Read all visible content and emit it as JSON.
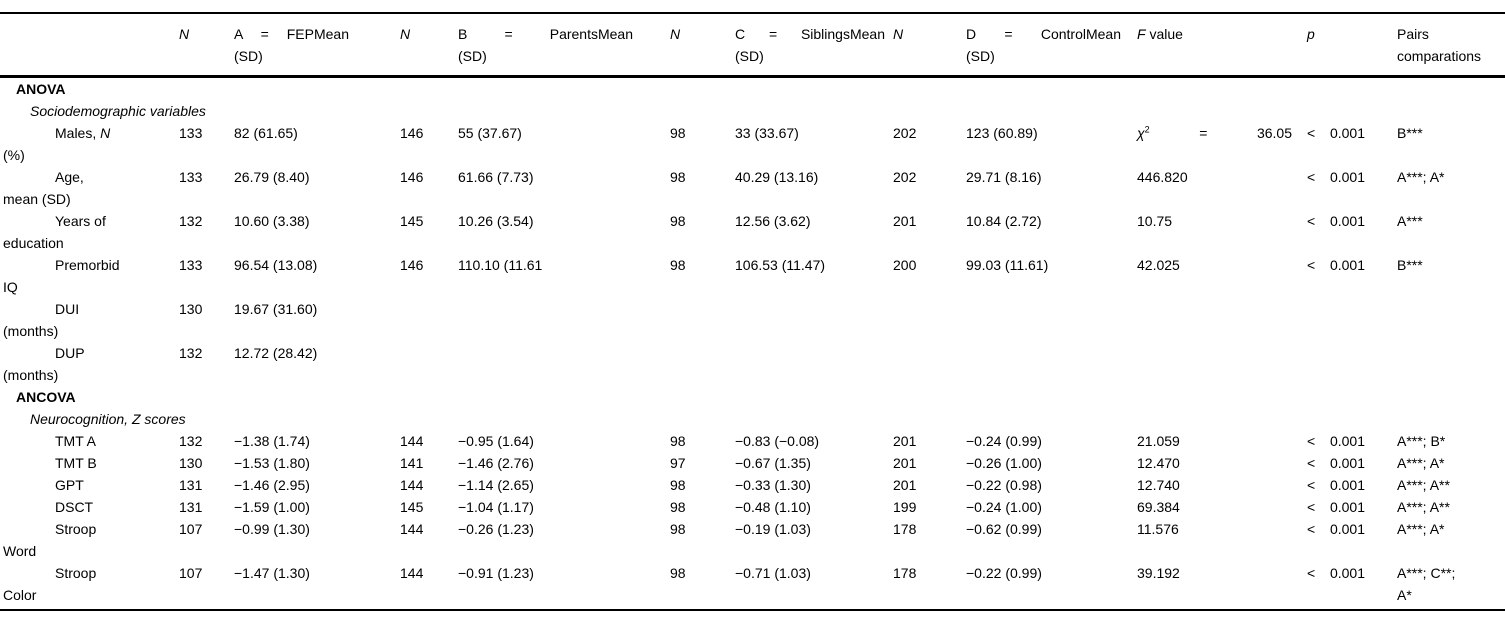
{
  "page": {
    "background": "#ffffff",
    "text_color": "#000000",
    "rule_color": "#000000"
  },
  "table": {
    "columns": [
      {
        "id": "label",
        "header": ""
      },
      {
        "id": "n1",
        "header": {
          "seg": [
            {
              "t": "N",
              "i": true
            }
          ]
        }
      },
      {
        "id": "a",
        "header": {
          "lines": [
            "A = FEPMean",
            "(SD)"
          ],
          "just": true
        }
      },
      {
        "id": "n2",
        "header": {
          "seg": [
            {
              "t": "N",
              "i": true
            }
          ]
        }
      },
      {
        "id": "b",
        "header": {
          "lines": [
            "B = ParentsMean",
            "(SD)"
          ],
          "just": true
        }
      },
      {
        "id": "n3",
        "header": {
          "seg": [
            {
              "t": "N",
              "i": true
            }
          ]
        }
      },
      {
        "id": "c",
        "header": {
          "lines": [
            "C = SiblingsMean",
            "(SD)"
          ],
          "just": true
        }
      },
      {
        "id": "n4",
        "header": {
          "seg": [
            {
              "t": "N",
              "i": true
            }
          ]
        }
      },
      {
        "id": "d",
        "header": {
          "lines": [
            "D = ControlMean",
            "(SD)"
          ],
          "just": true
        }
      },
      {
        "id": "f",
        "header": {
          "seg": [
            {
              "t": "F",
              "i": true
            },
            {
              "t": " value"
            }
          ]
        }
      },
      {
        "id": "p",
        "header": {
          "seg": [
            {
              "t": "p",
              "i": true
            }
          ]
        }
      },
      {
        "id": "pairs",
        "header": {
          "lines": [
            "Pairs",
            "comparations"
          ]
        }
      }
    ],
    "rows": [
      {
        "type": "section",
        "label": "ANOVA"
      },
      {
        "type": "subsection",
        "label": {
          "seg": [
            {
              "t": "Sociodemographic variables",
              "i": true
            }
          ]
        }
      },
      {
        "type": "item",
        "label": {
          "l1": {
            "seg": [
              {
                "t": "Males, "
              },
              {
                "t": "N",
                "i": true
              }
            ]
          },
          "l2": "(%)"
        },
        "cells": [
          "133",
          "82 (61.65)",
          "146",
          "55 (37.67)",
          "98",
          "33 (33.67)",
          "202",
          "123 (60.89)",
          {
            "seg": [
              {
                "t": "χ",
                "i": true
              },
              {
                "t": "2",
                "sup": true
              },
              {
                "t": " = 36.05"
              }
            ],
            "just": true
          },
          {
            "text": "< 0.001",
            "just": true
          },
          "B***"
        ]
      },
      {
        "type": "item",
        "label": {
          "l1": "Age,",
          "l2": "mean (SD)"
        },
        "cells": [
          "133",
          "26.79 (8.40)",
          "146",
          "61.66 (7.73)",
          "98",
          "40.29 (13.16)",
          "202",
          "29.71 (8.16)",
          "446.820",
          {
            "text": "< 0.001",
            "just": true
          },
          "A***; A*"
        ]
      },
      {
        "type": "item",
        "label": {
          "l1": "Years of",
          "l2": "education"
        },
        "cells": [
          "132",
          "10.60 (3.38)",
          "145",
          "10.26 (3.54)",
          "98",
          "12.56 (3.62)",
          "201",
          "10.84 (2.72)",
          "10.75",
          {
            "text": "< 0.001",
            "just": true
          },
          "A***"
        ]
      },
      {
        "type": "item",
        "label": {
          "l1": "Premorbid",
          "l2": "IQ"
        },
        "cells": [
          "133",
          "96.54 (13.08)",
          "146",
          "110.10 (11.61",
          "98",
          "106.53 (11.47)",
          "200",
          "99.03 (11.61)",
          "42.025",
          {
            "text": "< 0.001",
            "just": true
          },
          "B***"
        ]
      },
      {
        "type": "item",
        "label": {
          "l1": "DUI",
          "l2": "(months)"
        },
        "cells": [
          "130",
          "19.67 (31.60)",
          "",
          "",
          "",
          "",
          "",
          "",
          "",
          "",
          ""
        ]
      },
      {
        "type": "item",
        "label": {
          "l1": "DUP",
          "l2": "(months)"
        },
        "cells": [
          "132",
          "12.72 (28.42)",
          "",
          "",
          "",
          "",
          "",
          "",
          "",
          "",
          ""
        ]
      },
      {
        "type": "section",
        "label": "ANCOVA"
      },
      {
        "type": "subsection",
        "label": {
          "seg": [
            {
              "t": "Neurocognition, ",
              "i": true
            },
            {
              "t": "Z "
            },
            {
              "t": "scores",
              "i": true
            }
          ]
        }
      },
      {
        "type": "item",
        "label": {
          "l1": "TMT A"
        },
        "cells": [
          "132",
          "−1.38 (1.74)",
          "144",
          "−0.95 (1.64)",
          "98",
          "−0.83 (−0.08)",
          "201",
          "−0.24 (0.99)",
          "21.059",
          {
            "text": "< 0.001",
            "just": true
          },
          "A***; B*"
        ]
      },
      {
        "type": "item",
        "label": {
          "l1": "TMT B"
        },
        "cells": [
          "130",
          "−1.53 (1.80)",
          "141",
          "−1.46 (2.76)",
          "97",
          "−0.67 (1.35)",
          "201",
          "−0.26 (1.00)",
          "12.470",
          {
            "text": "< 0.001",
            "just": true
          },
          "A***; A*"
        ]
      },
      {
        "type": "item",
        "label": {
          "l1": "GPT"
        },
        "cells": [
          "131",
          "−1.46 (2.95)",
          "144",
          "−1.14 (2.65)",
          "98",
          "−0.33 (1.30)",
          "201",
          "−0.22 (0.98)",
          "12.740",
          {
            "text": "< 0.001",
            "just": true
          },
          "A***; A**"
        ]
      },
      {
        "type": "item",
        "label": {
          "l1": "DSCT"
        },
        "cells": [
          "131",
          "−1.59 (1.00)",
          "145",
          "−1.04 (1.17)",
          "98",
          "−0.48 (1.10)",
          "199",
          "−0.24 (1.00)",
          "69.384",
          {
            "text": "< 0.001",
            "just": true
          },
          "A***; A**"
        ]
      },
      {
        "type": "item",
        "label": {
          "l1": "Stroop",
          "l2": "Word"
        },
        "cells": [
          "107",
          "−0.99 (1.30)",
          "144",
          "−0.26 (1.23)",
          "98",
          "−0.19 (1.03)",
          "178",
          "−0.62 (0.99)",
          "11.576",
          {
            "text": "< 0.001",
            "just": true
          },
          "A***; A*"
        ]
      },
      {
        "type": "item",
        "label": {
          "l1": "Stroop",
          "l2": "Color"
        },
        "cells": [
          "107",
          "−1.47 (1.30)",
          "144",
          "−0.91 (1.23)",
          "98",
          "−0.71 (1.03)",
          "178",
          "−0.22 (0.99)",
          "39.192",
          {
            "text": "< 0.001",
            "just": true
          },
          {
            "lines": [
              "A***; C**;",
              "A*"
            ]
          }
        ]
      }
    ]
  }
}
